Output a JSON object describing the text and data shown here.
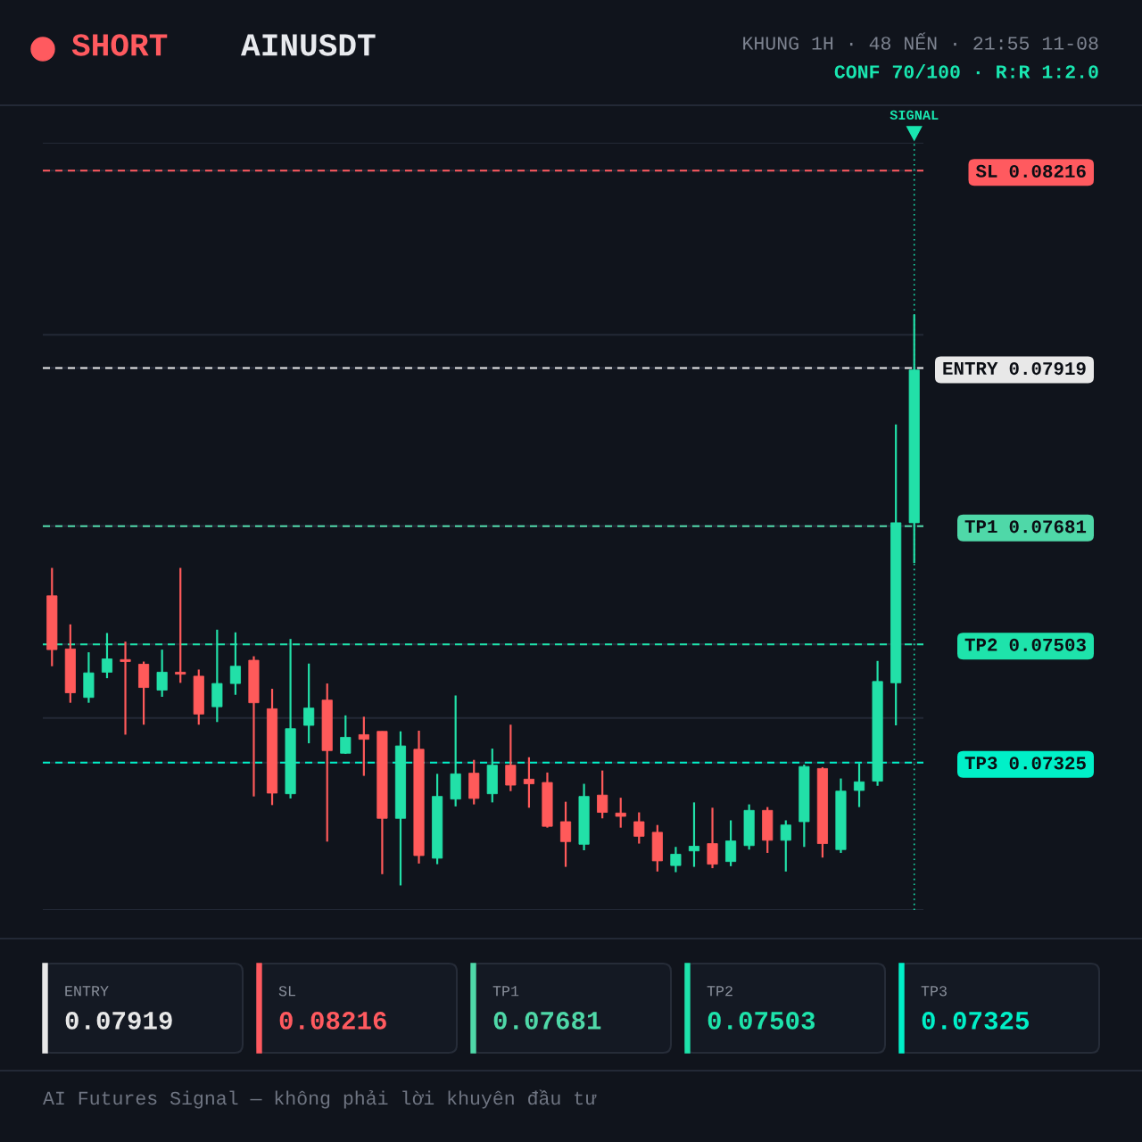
{
  "chart_data": {
    "type": "candlestick",
    "title": "AINUSDT",
    "subtitle": "KHUNG 1H · 48 NẾN · 21:55 11-08",
    "annotations": [
      "SHORT",
      "CONF 70/100 · R:R 1:2.0",
      "AI Futures Signal — không phải lời khuyên đầu tư",
      "SIGNAL",
      "ENTRY",
      "0.07919",
      "SL",
      "0.08216",
      "TP1",
      "0.07681",
      "TP2",
      "0.07503",
      "TP3",
      "0.07325"
    ],
    "categories": [
      null,
      null,
      null,
      null,
      null,
      null,
      null,
      null,
      null,
      null,
      null,
      null,
      null,
      null,
      null,
      null,
      null,
      null,
      null,
      null,
      null,
      null,
      null,
      null,
      null,
      null,
      null,
      null,
      null,
      null,
      null,
      null,
      null,
      null,
      null,
      null,
      null,
      null,
      null,
      null,
      null,
      null,
      null,
      null,
      null,
      null,
      null,
      null
    ],
    "ohlc": [
      [
        0.07576,
        0.07618,
        0.0747,
        0.07495
      ],
      [
        0.07496,
        0.07533,
        0.07415,
        0.0743
      ],
      [
        0.07423,
        0.07491,
        0.07415,
        0.0746
      ],
      [
        0.07461,
        0.0752,
        0.07452,
        0.07481
      ],
      [
        0.0748,
        0.07507,
        0.07367,
        0.07477
      ],
      [
        0.07473,
        0.07477,
        0.07382,
        0.07438
      ],
      [
        0.07434,
        0.07495,
        0.07424,
        0.07461
      ],
      [
        0.07461,
        0.07618,
        0.07445,
        0.07458
      ],
      [
        0.07455,
        0.07465,
        0.07382,
        0.07398
      ],
      [
        0.07409,
        0.07525,
        0.07386,
        0.07444
      ],
      [
        0.07444,
        0.07521,
        0.07427,
        0.0747
      ],
      [
        0.07479,
        0.07485,
        0.07274,
        0.07415
      ],
      [
        0.07406,
        0.07436,
        0.07261,
        0.07279
      ],
      [
        0.07278,
        0.07511,
        0.07271,
        0.07376
      ],
      [
        0.07381,
        0.07474,
        0.07354,
        0.07407
      ],
      [
        0.07419,
        0.07444,
        0.07206,
        0.07343
      ],
      [
        0.07339,
        0.07396,
        0.07338,
        0.07363
      ],
      [
        0.07367,
        0.07394,
        0.07305,
        0.0736
      ],
      [
        0.07372,
        0.07372,
        0.07157,
        0.07241
      ],
      [
        0.07241,
        0.07372,
        0.0714,
        0.0735
      ],
      [
        0.07345,
        0.07373,
        0.07173,
        0.07185
      ],
      [
        0.07181,
        0.07308,
        0.07172,
        0.07274
      ],
      [
        0.0727,
        0.07426,
        0.07259,
        0.07308
      ],
      [
        0.07309,
        0.07329,
        0.07262,
        0.07271
      ],
      [
        0.07278,
        0.07346,
        0.07265,
        0.07321
      ],
      [
        0.07321,
        0.07382,
        0.07282,
        0.07291
      ],
      [
        0.073,
        0.07333,
        0.07257,
        0.07293
      ],
      [
        0.07295,
        0.0731,
        0.07227,
        0.07229
      ],
      [
        0.07236,
        0.07266,
        0.07168,
        0.07206
      ],
      [
        0.07202,
        0.07293,
        0.07193,
        0.07274
      ],
      [
        0.07276,
        0.07313,
        0.07241,
        0.0725
      ],
      [
        0.07249,
        0.07272,
        0.07227,
        0.07244
      ],
      [
        0.07236,
        0.0725,
        0.07203,
        0.07214
      ],
      [
        0.0722,
        0.07231,
        0.07161,
        0.07177
      ],
      [
        0.0717,
        0.07198,
        0.0716,
        0.07187
      ],
      [
        0.07192,
        0.07265,
        0.07168,
        0.07199
      ],
      [
        0.07203,
        0.07257,
        0.07166,
        0.07172
      ],
      [
        0.07176,
        0.07238,
        0.07169,
        0.07207
      ],
      [
        0.072,
        0.07262,
        0.07194,
        0.07253
      ],
      [
        0.07253,
        0.07258,
        0.07189,
        0.07208
      ],
      [
        0.07208,
        0.07238,
        0.07161,
        0.07231
      ],
      [
        0.07236,
        0.07322,
        0.07198,
        0.07319
      ],
      [
        0.07316,
        0.07318,
        0.07182,
        0.07203
      ],
      [
        0.07194,
        0.07301,
        0.07189,
        0.07282
      ],
      [
        0.07283,
        0.07324,
        0.07258,
        0.07296
      ],
      [
        0.07297,
        0.07478,
        0.0729,
        0.07447
      ],
      [
        0.07445,
        0.07834,
        0.07381,
        0.07686
      ],
      [
        0.07686,
        0.07999,
        0.07625,
        0.07916
      ]
    ],
    "colors": [
      "#ff5a5a",
      "#ff5a5a",
      "#22e0a8",
      "#22e0a8",
      "#ff5a5a",
      "#ff5a5a",
      "#22e0a8",
      "#ff5a5a",
      "#ff5a5a",
      "#22e0a8",
      "#22e0a8",
      "#ff5a5a",
      "#ff5a5a",
      "#22e0a8",
      "#22e0a8",
      "#ff5a5a",
      "#22e0a8",
      "#ff5a5a",
      "#ff5a5a",
      "#22e0a8",
      "#ff5a5a",
      "#22e0a8",
      "#22e0a8",
      "#ff5a5a",
      "#22e0a8",
      "#ff5a5a",
      "#ff5a5a",
      "#ff5a5a",
      "#ff5a5a",
      "#22e0a8",
      "#ff5a5a",
      "#ff5a5a",
      "#ff5a5a",
      "#ff5a5a",
      "#22e0a8",
      "#22e0a8",
      "#ff5a5a",
      "#22e0a8",
      "#22e0a8",
      "#ff5a5a",
      "#22e0a8",
      "#22e0a8",
      "#ff5a5a",
      "#22e0a8",
      "#22e0a8",
      "#22e0a8",
      "#22e0a8",
      "#22e0a8"
    ],
    "ylim": [
      0.07103,
      0.08258
    ],
    "yticks": [
      {
        "value": 0.07103,
        "label": null
      },
      0.07325,
      {
        "value": 0.07392,
        "label": null
      },
      0.07503,
      0.07681,
      0.07919,
      {
        "value": 0.07969,
        "label": null
      },
      0.08216,
      {
        "value": 0.08258,
        "label": null
      }
    ],
    "tick_labels": "y",
    "grid": "y",
    "ref_lines": [
      {
        "axis": "y",
        "value": 0.07919,
        "label": "ENTRY",
        "color": "#e8e8e8",
        "line_style": "dashed"
      },
      {
        "axis": "y",
        "value": 0.08216,
        "label": "SL",
        "color": "#ff5a5f",
        "line_style": "dashed"
      },
      {
        "axis": "y",
        "value": 0.07681,
        "label": "TP1",
        "color": "#4fd8a8",
        "line_style": "dashed"
      },
      {
        "axis": "y",
        "value": 0.07503,
        "label": "TP2",
        "color": "#1ee3ab",
        "line_style": "dashed"
      },
      {
        "axis": "y",
        "value": 0.07325,
        "label": "TP3",
        "color": "#00f0c8",
        "line_style": "dashed"
      }
    ]
  }
}
